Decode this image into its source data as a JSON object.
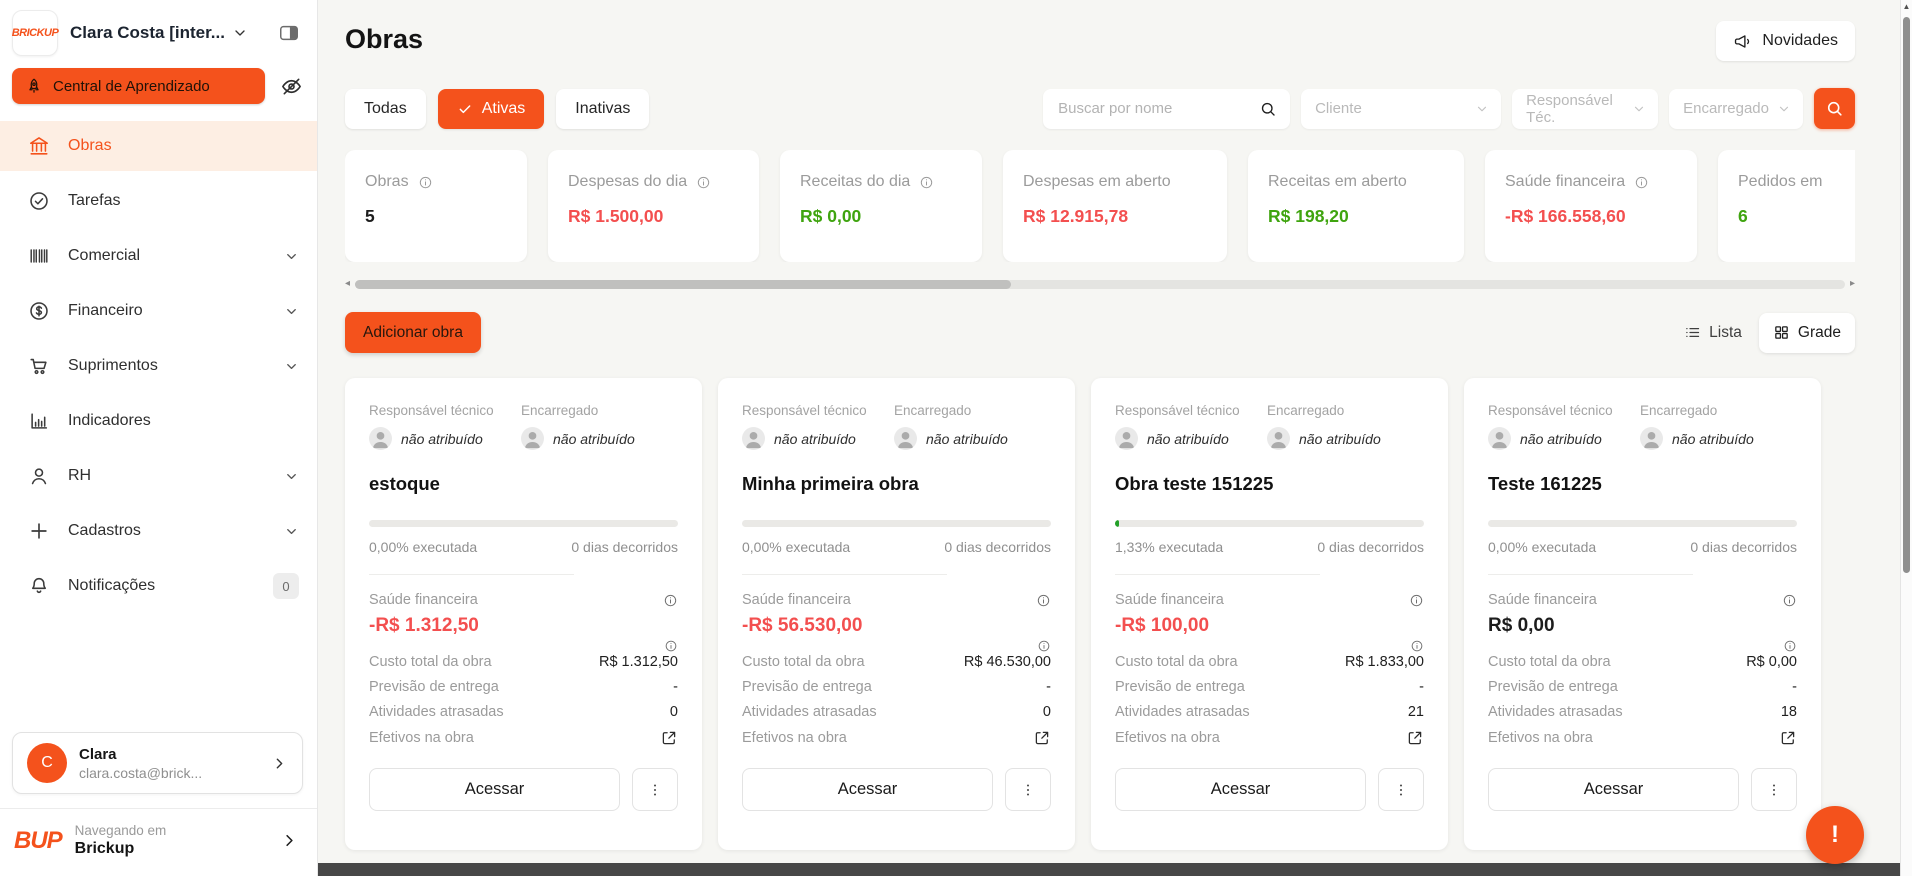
{
  "colors": {
    "accent": "#f4521c",
    "negative": "#f34f4f",
    "positive": "#3fa40f",
    "active_bg": "#fdeee3"
  },
  "sidebar": {
    "logo_text": "BRICKUP",
    "account_name": "Clara Costa [inter...",
    "learning_center_label": "Central de Aprendizado",
    "items": [
      {
        "label": "Obras",
        "active": true
      },
      {
        "label": "Tarefas"
      },
      {
        "label": "Comercial",
        "chevron": true
      },
      {
        "label": "Financeiro",
        "chevron": true
      },
      {
        "label": "Suprimentos",
        "chevron": true
      },
      {
        "label": "Indicadores"
      },
      {
        "label": "RH",
        "chevron": true
      },
      {
        "label": "Cadastros",
        "chevron": true
      },
      {
        "label": "Notificações",
        "badge": "0"
      }
    ],
    "user": {
      "initial": "C",
      "name": "Clara",
      "email": "clara.costa@brick..."
    },
    "workspace": {
      "logo_text": "BUP",
      "prefix": "Navegando em",
      "name": "Brickup"
    }
  },
  "header": {
    "title": "Obras",
    "news_button_label": "Novidades"
  },
  "filters": {
    "tabs": [
      {
        "label": "Todas"
      },
      {
        "label": "Ativas",
        "active": true
      },
      {
        "label": "Inativas"
      }
    ],
    "search_placeholder": "Buscar por nome",
    "search_value": "",
    "dropdowns": [
      "Cliente",
      "Responsável Téc.",
      "Encarregado"
    ]
  },
  "stats": [
    {
      "label": "Obras",
      "info": true,
      "value": "5",
      "color": "dark"
    },
    {
      "label": "Despesas do dia",
      "info": true,
      "value": "R$ 1.500,00",
      "color": "red"
    },
    {
      "label": "Receitas do dia",
      "info": true,
      "value": "R$ 0,00",
      "color": "green"
    },
    {
      "label": "Despesas em aberto",
      "info": false,
      "value": "R$ 12.915,78",
      "color": "red"
    },
    {
      "label": "Receitas em aberto",
      "info": false,
      "value": "R$ 198,20",
      "color": "green"
    },
    {
      "label": "Saúde financeira",
      "info": true,
      "value": "-R$ 166.558,60",
      "color": "red"
    },
    {
      "label": "Pedidos em",
      "info": false,
      "value": "6",
      "color": "green"
    }
  ],
  "actions": {
    "add_button_label": "Adicionar obra",
    "view_list_label": "Lista",
    "view_grid_label": "Grade"
  },
  "cards": {
    "labels": {
      "responsavel": "Responsável técnico",
      "encarregado": "Encarregado",
      "nao_atribuido": "não atribuído",
      "saude": "Saúde financeira",
      "custo": "Custo total da obra",
      "previsao": "Previsão de entrega",
      "atrasadas": "Atividades atrasadas",
      "efetivos": "Efetivos na obra",
      "acessar": "Acessar"
    },
    "items": [
      {
        "title": "estoque",
        "progress_pct": 0,
        "executada": "0,00% executada",
        "dias": "0 dias decorridos",
        "saude": "-R$ 1.312,50",
        "saude_color": "red",
        "custo": "R$ 1.312,50",
        "previsao": "-",
        "atrasadas": "0",
        "atrasadas_color": "dark"
      },
      {
        "title": "Minha primeira obra",
        "progress_pct": 0,
        "executada": "0,00% executada",
        "dias": "0 dias decorridos",
        "saude": "-R$ 56.530,00",
        "saude_color": "red",
        "custo": "R$ 46.530,00",
        "previsao": "-",
        "atrasadas": "0",
        "atrasadas_color": "dark"
      },
      {
        "title": "Obra teste 151225",
        "progress_pct": 1.33,
        "executada": "1,33% executada",
        "dias": "0 dias decorridos",
        "saude": "-R$ 100,00",
        "saude_color": "red",
        "custo": "R$ 1.833,00",
        "previsao": "-",
        "atrasadas": "21",
        "atrasadas_color": "red"
      },
      {
        "title": "Teste 161225",
        "progress_pct": 0,
        "executada": "0,00% executada",
        "dias": "0 dias decorridos",
        "saude": "R$ 0,00",
        "saude_color": "dark",
        "custo": "R$ 0,00",
        "previsao": "-",
        "atrasadas": "18",
        "atrasadas_color": "red"
      }
    ]
  },
  "fab": {
    "label": "!"
  }
}
